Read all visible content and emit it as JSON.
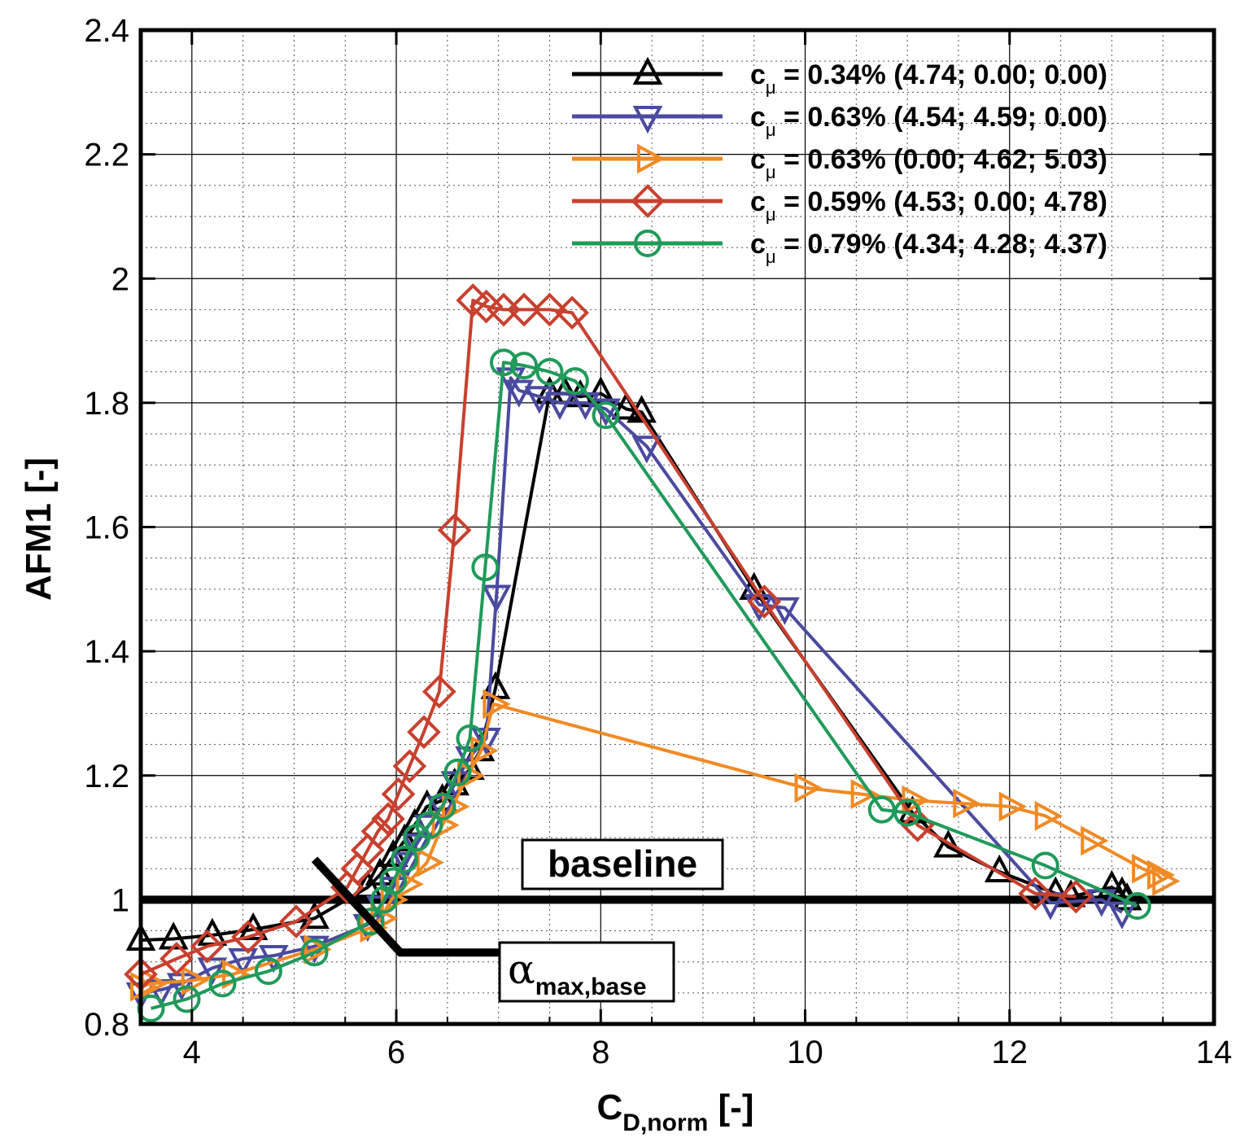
{
  "chart_data": {
    "type": "line",
    "title": "",
    "xlabel": "C",
    "xlabel_sub": "D,norm",
    "xlabel_suffix": " [-]",
    "ylabel": "AFM1 [-]",
    "xlim": [
      3.5,
      14
    ],
    "ylim": [
      0.8,
      2.4
    ],
    "x_ticks": [
      4,
      6,
      8,
      10,
      12,
      14
    ],
    "y_ticks": [
      0.8,
      1,
      1.2,
      1.4,
      1.6,
      1.8,
      2,
      2.2,
      2.4
    ],
    "x_tick_labels": [
      "4",
      "6",
      "8",
      "10",
      "12",
      "14"
    ],
    "y_tick_labels": [
      "0.8",
      "1",
      "1.2",
      "1.4",
      "1.6",
      "1.8",
      "2",
      "2.2",
      "2.4"
    ],
    "grid": true,
    "legend_position": "top-right",
    "baseline": {
      "y": 1.0,
      "label": "baseline"
    },
    "annotation": {
      "symbol": "α",
      "subscript": "max,base",
      "line_from": [
        5.2,
        1.065
      ],
      "corner": [
        6.04,
        0.915
      ],
      "line_to": [
        7.0,
        0.915
      ]
    },
    "series": [
      {
        "name": "c",
        "name_sub": "μ",
        "label": " = 0.34% (4.74; 0.00; 0.00)",
        "color": "#000000",
        "marker": "triangle-up",
        "points": [
          [
            3.5,
            0.935
          ],
          [
            3.82,
            0.937
          ],
          [
            4.2,
            0.943
          ],
          [
            4.6,
            0.952
          ],
          [
            5.2,
            0.97
          ],
          [
            5.72,
            1.02
          ],
          [
            5.84,
            1.04
          ],
          [
            5.97,
            1.07
          ],
          [
            6.08,
            1.095
          ],
          [
            6.18,
            1.12
          ],
          [
            6.3,
            1.15
          ],
          [
            6.45,
            1.16
          ],
          [
            6.57,
            1.185
          ],
          [
            6.72,
            1.21
          ],
          [
            6.82,
            1.24
          ],
          [
            6.97,
            1.34
          ],
          [
            7.5,
            1.815
          ],
          [
            7.65,
            1.815
          ],
          [
            7.8,
            1.81
          ],
          [
            8.0,
            1.815
          ],
          [
            8.25,
            1.79
          ],
          [
            8.4,
            1.785
          ],
          [
            9.5,
            1.5
          ],
          [
            11.05,
            1.14
          ],
          [
            11.4,
            1.085
          ],
          [
            11.9,
            1.045
          ],
          [
            12.45,
            1.01
          ],
          [
            12.6,
            1.005
          ],
          [
            13.0,
            1.02
          ],
          [
            13.1,
            1.01
          ],
          [
            13.15,
            1.0
          ]
        ]
      },
      {
        "name": "c",
        "name_sub": "μ",
        "label": " = 0.63% (4.54; 4.59; 0.00)",
        "color": "#4a4aa0",
        "marker": "triangle-down",
        "points": [
          [
            3.5,
            0.85
          ],
          [
            3.7,
            0.855
          ],
          [
            3.9,
            0.865
          ],
          [
            4.2,
            0.89
          ],
          [
            4.5,
            0.905
          ],
          [
            4.8,
            0.91
          ],
          [
            5.2,
            0.925
          ],
          [
            5.72,
            0.96
          ],
          [
            5.85,
            0.99
          ],
          [
            5.97,
            1.02
          ],
          [
            6.1,
            1.06
          ],
          [
            6.2,
            1.09
          ],
          [
            6.32,
            1.12
          ],
          [
            6.45,
            1.15
          ],
          [
            6.58,
            1.19
          ],
          [
            6.72,
            1.23
          ],
          [
            6.88,
            1.26
          ],
          [
            6.98,
            1.49
          ],
          [
            7.12,
            1.84
          ],
          [
            7.2,
            1.82
          ],
          [
            7.4,
            1.81
          ],
          [
            7.6,
            1.8
          ],
          [
            7.85,
            1.8
          ],
          [
            8.05,
            1.79
          ],
          [
            8.45,
            1.73
          ],
          [
            9.55,
            1.475
          ],
          [
            9.8,
            1.47
          ],
          [
            12.4,
            0.995
          ],
          [
            12.9,
            1.0
          ],
          [
            13.1,
            0.98
          ]
        ]
      },
      {
        "name": "c",
        "name_sub": "μ",
        "label": " = 0.63% (0.00; 4.62; 5.03)",
        "color": "#f08a24",
        "marker": "triangle-right",
        "points": [
          [
            3.5,
            0.86
          ],
          [
            3.6,
            0.865
          ],
          [
            4.0,
            0.87
          ],
          [
            4.4,
            0.88
          ],
          [
            5.2,
            0.92
          ],
          [
            5.75,
            0.955
          ],
          [
            5.85,
            0.97
          ],
          [
            5.95,
            1.0
          ],
          [
            6.1,
            1.025
          ],
          [
            6.3,
            1.06
          ],
          [
            6.45,
            1.12
          ],
          [
            6.55,
            1.15
          ],
          [
            6.7,
            1.2
          ],
          [
            6.83,
            1.24
          ],
          [
            6.95,
            1.315
          ],
          [
            10.0,
            1.18
          ],
          [
            10.55,
            1.17
          ],
          [
            11.05,
            1.16
          ],
          [
            11.55,
            1.155
          ],
          [
            12.0,
            1.15
          ],
          [
            12.35,
            1.135
          ],
          [
            12.8,
            1.095
          ],
          [
            13.3,
            1.05
          ],
          [
            13.45,
            1.04
          ],
          [
            13.5,
            1.03
          ]
        ]
      },
      {
        "name": "c",
        "name_sub": "μ",
        "label": " = 0.59% (4.53; 0.00; 4.78)",
        "color": "#c8402e",
        "marker": "diamond",
        "points": [
          [
            3.5,
            0.88
          ],
          [
            3.85,
            0.905
          ],
          [
            4.15,
            0.925
          ],
          [
            4.55,
            0.94
          ],
          [
            5.02,
            0.965
          ],
          [
            5.52,
            1.02
          ],
          [
            5.62,
            1.05
          ],
          [
            5.72,
            1.08
          ],
          [
            5.82,
            1.11
          ],
          [
            5.92,
            1.13
          ],
          [
            6.02,
            1.17
          ],
          [
            6.13,
            1.215
          ],
          [
            6.27,
            1.27
          ],
          [
            6.42,
            1.335
          ],
          [
            6.57,
            1.595
          ],
          [
            6.75,
            1.965
          ],
          [
            6.88,
            1.955
          ],
          [
            7.05,
            1.95
          ],
          [
            7.25,
            1.95
          ],
          [
            7.5,
            1.95
          ],
          [
            7.72,
            1.945
          ],
          [
            9.6,
            1.48
          ],
          [
            11.1,
            1.12
          ],
          [
            12.25,
            1.01
          ],
          [
            12.65,
            1.005
          ]
        ]
      },
      {
        "name": "c",
        "name_sub": "μ",
        "label": " = 0.79% (4.34; 4.28; 4.37)",
        "color": "#1f9a5a",
        "marker": "circle",
        "points": [
          [
            3.6,
            0.825
          ],
          [
            3.95,
            0.84
          ],
          [
            4.3,
            0.865
          ],
          [
            4.75,
            0.885
          ],
          [
            5.2,
            0.915
          ],
          [
            5.75,
            0.965
          ],
          [
            5.88,
            1.0
          ],
          [
            5.97,
            1.03
          ],
          [
            6.08,
            1.065
          ],
          [
            6.2,
            1.1
          ],
          [
            6.32,
            1.12
          ],
          [
            6.45,
            1.15
          ],
          [
            6.6,
            1.205
          ],
          [
            6.72,
            1.26
          ],
          [
            6.87,
            1.535
          ],
          [
            7.05,
            1.865
          ],
          [
            7.25,
            1.86
          ],
          [
            7.5,
            1.85
          ],
          [
            7.75,
            1.835
          ],
          [
            8.05,
            1.78
          ],
          [
            10.75,
            1.145
          ],
          [
            11.0,
            1.14
          ],
          [
            12.35,
            1.055
          ],
          [
            13.25,
            0.99
          ]
        ]
      }
    ]
  }
}
